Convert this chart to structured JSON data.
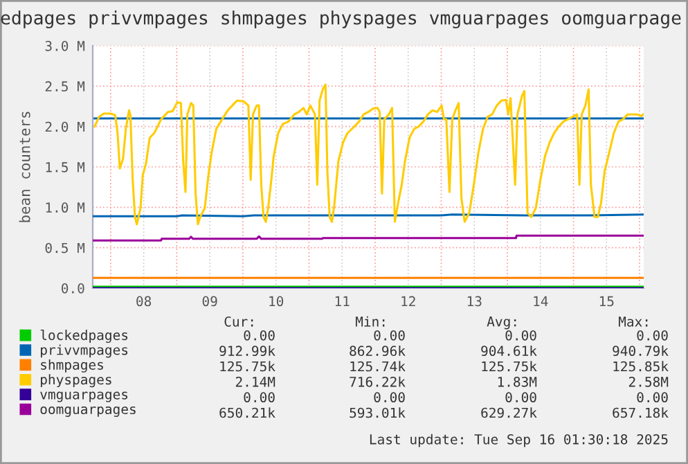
{
  "chart_data": {
    "type": "line",
    "title": "edpages privvmpages shmpages physpages vmguarpages oomguarpage",
    "ylabel": "bean counters",
    "xlim": [
      "2025-09-07T17:30",
      "2025-09-16T01:30"
    ],
    "xticks": [
      {
        "value": "2025-09-08T00:00",
        "label": null
      },
      {
        "value": "2025-09-08T12:00",
        "label": "08"
      },
      {
        "value": "2025-09-09T00:00",
        "label": null
      },
      {
        "value": "2025-09-09T12:00",
        "label": "09"
      },
      {
        "value": "2025-09-10T00:00",
        "label": null
      },
      {
        "value": "2025-09-10T12:00",
        "label": "10"
      },
      {
        "value": "2025-09-11T00:00",
        "label": null
      },
      {
        "value": "2025-09-11T12:00",
        "label": "11"
      },
      {
        "value": "2025-09-12T00:00",
        "label": null
      },
      {
        "value": "2025-09-12T12:00",
        "label": "12"
      },
      {
        "value": "2025-09-13T00:00",
        "label": null
      },
      {
        "value": "2025-09-13T12:00",
        "label": "13"
      },
      {
        "value": "2025-09-14T00:00",
        "label": null
      },
      {
        "value": "2025-09-14T12:00",
        "label": "14"
      },
      {
        "value": "2025-09-15T00:00",
        "label": null
      },
      {
        "value": "2025-09-15T12:00",
        "label": "15"
      },
      {
        "value": "2025-09-16T00:00",
        "label": null
      }
    ],
    "ylim": [
      0,
      3000000
    ],
    "yticks": [
      {
        "value": 0,
        "label": "0.0"
      },
      {
        "value": 500000,
        "label": "0.5 M"
      },
      {
        "value": 1000000,
        "label": "1.0 M"
      },
      {
        "value": 1500000,
        "label": "1.5 M"
      },
      {
        "value": 2000000,
        "label": "2.0 M"
      },
      {
        "value": 2500000,
        "label": "2.5 M"
      },
      {
        "value": 3000000,
        "label": "3.0 M"
      }
    ],
    "grid": true,
    "legend": "bottom",
    "line_style": "solid",
    "marker": "none",
    "ref_lines": [
      {
        "axis": "y",
        "value": 2100000,
        "color": "#0066b3"
      }
    ],
    "series": [
      {
        "name": "lockedpages",
        "color": "#00cc00",
        "x": [
          "2025-09-07T17:30",
          "2025-09-16T01:30"
        ],
        "values": [
          0,
          0
        ]
      },
      {
        "name": "privvmpages",
        "color": "#0066b3",
        "x": [
          "2025-09-07T17:30",
          "2025-09-08T20:00",
          "2025-09-09T00:00",
          "2025-09-09T02:00",
          "2025-09-10T00:00",
          "2025-09-10T04:00",
          "2025-09-10T06:00",
          "2025-09-11T00:00",
          "2025-09-11T04:00",
          "2025-09-12T00:00",
          "2025-09-12T02:00",
          "2025-09-13T00:00",
          "2025-09-13T04:00",
          "2025-09-14T06:00",
          "2025-09-15T06:00",
          "2025-09-16T01:30"
        ],
        "values": [
          890000,
          890000,
          890000,
          900000,
          890000,
          900000,
          900000,
          900000,
          900000,
          900000,
          900000,
          900000,
          910000,
          900000,
          900000,
          910000
        ]
      },
      {
        "name": "shmpages",
        "color": "#ff8000",
        "x": [
          "2025-09-07T17:30",
          "2025-09-16T01:30"
        ],
        "values": [
          126000,
          126000
        ]
      },
      {
        "name": "physpages",
        "color": "#ffcc00",
        "x": [
          "2025-09-07T18:10",
          "2025-09-07T19:50",
          "2025-09-07T21:30",
          "2025-09-08T00:00",
          "2025-09-08T01:40",
          "2025-09-08T02:30",
          "2025-09-08T03:20",
          "2025-09-08T04:30",
          "2025-09-08T05:30",
          "2025-09-08T06:40",
          "2025-09-08T07:10",
          "2025-09-08T08:00",
          "2025-09-08T08:50",
          "2025-09-08T09:30",
          "2025-09-08T10:50",
          "2025-09-08T11:40",
          "2025-09-08T12:50",
          "2025-09-08T14:10",
          "2025-09-08T15:50",
          "2025-09-08T18:20",
          "2025-09-08T20:50",
          "2025-09-08T22:30",
          "2025-09-09T00:10",
          "2025-09-09T01:30",
          "2025-09-09T02:20",
          "2025-09-09T03:10",
          "2025-09-09T03:50",
          "2025-09-09T05:10",
          "2025-09-09T06:00",
          "2025-09-09T06:50",
          "2025-09-09T07:40",
          "2025-09-09T08:30",
          "2025-09-09T10:10",
          "2025-09-09T11:30",
          "2025-09-09T12:40",
          "2025-09-09T14:20",
          "2025-09-09T16:30",
          "2025-09-09T18:30",
          "2025-09-09T20:10",
          "2025-09-09T21:50",
          "2025-09-10T00:20",
          "2025-09-10T02:00",
          "2025-09-10T02:50",
          "2025-09-10T03:40",
          "2025-09-10T05:00",
          "2025-09-10T05:50",
          "2025-09-10T06:40",
          "2025-09-10T07:30",
          "2025-09-10T08:20",
          "2025-09-10T09:10",
          "2025-09-10T10:20",
          "2025-09-10T11:10",
          "2025-09-10T12:50",
          "2025-09-10T14:30",
          "2025-09-10T16:30",
          "2025-09-10T18:40",
          "2025-09-10T20:20",
          "2025-09-10T22:00",
          "2025-09-10T23:10",
          "2025-09-11T00:30",
          "2025-09-11T02:10",
          "2025-09-11T03:00",
          "2025-09-11T03:50",
          "2025-09-11T05:00",
          "2025-09-11T06:00",
          "2025-09-11T06:40",
          "2025-09-11T07:30",
          "2025-09-11T08:20",
          "2025-09-11T09:10",
          "2025-09-11T10:40",
          "2025-09-11T12:20",
          "2025-09-11T14:00",
          "2025-09-11T16:30",
          "2025-09-11T18:10",
          "2025-09-11T19:50",
          "2025-09-11T21:30",
          "2025-09-11T23:10",
          "2025-09-12T00:50",
          "2025-09-12T01:40",
          "2025-09-12T02:30",
          "2025-09-12T03:20",
          "2025-09-12T05:00",
          "2025-09-12T06:10",
          "2025-09-12T07:10",
          "2025-09-12T08:20",
          "2025-09-12T09:40",
          "2025-09-12T10:50",
          "2025-09-12T12:30",
          "2025-09-12T14:10",
          "2025-09-12T15:50",
          "2025-09-12T17:30",
          "2025-09-12T19:10",
          "2025-09-12T20:50",
          "2025-09-12T22:30",
          "2025-09-13T00:10",
          "2025-09-13T01:00",
          "2025-09-13T01:50",
          "2025-09-13T03:00",
          "2025-09-13T04:00",
          "2025-09-13T05:10",
          "2025-09-13T06:20",
          "2025-09-13T07:20",
          "2025-09-13T08:30",
          "2025-09-13T10:10",
          "2025-09-13T11:50",
          "2025-09-13T13:30",
          "2025-09-13T15:10",
          "2025-09-13T16:50",
          "2025-09-13T18:30",
          "2025-09-13T20:10",
          "2025-09-13T21:50",
          "2025-09-13T23:30",
          "2025-09-14T00:20",
          "2025-09-14T01:10",
          "2025-09-14T02:50",
          "2025-09-14T03:40",
          "2025-09-14T05:20",
          "2025-09-14T06:10",
          "2025-09-14T07:20",
          "2025-09-14T08:40",
          "2025-09-14T10:20",
          "2025-09-14T12:00",
          "2025-09-14T13:40",
          "2025-09-14T15:20",
          "2025-09-14T17:00",
          "2025-09-14T18:40",
          "2025-09-14T20:20",
          "2025-09-14T22:00",
          "2025-09-14T23:40",
          "2025-09-15T01:20",
          "2025-09-15T02:10",
          "2025-09-15T03:00",
          "2025-09-15T04:20",
          "2025-09-15T05:30",
          "2025-09-15T06:20",
          "2025-09-15T07:40",
          "2025-09-15T08:50",
          "2025-09-15T10:00",
          "2025-09-15T11:20",
          "2025-09-15T13:00",
          "2025-09-15T14:40",
          "2025-09-15T16:20",
          "2025-09-15T18:00",
          "2025-09-15T19:40",
          "2025-09-15T21:20",
          "2025-09-15T23:00",
          "2025-09-16T00:40",
          "2025-09-16T01:20"
        ],
        "values": [
          2000000,
          2120000,
          2160000,
          2160000,
          2140000,
          1920000,
          1480000,
          1600000,
          1970000,
          2200000,
          2140000,
          1340000,
          880000,
          790000,
          990000,
          1400000,
          1540000,
          1860000,
          1920000,
          2090000,
          2180000,
          2190000,
          2300000,
          2290000,
          1570000,
          1190000,
          2150000,
          2290000,
          2260000,
          1170000,
          790000,
          880000,
          990000,
          1400000,
          1680000,
          1970000,
          2090000,
          2200000,
          2260000,
          2320000,
          2310000,
          2260000,
          1340000,
          2150000,
          2260000,
          2260000,
          1280000,
          880000,
          820000,
          990000,
          1340000,
          1630000,
          1920000,
          2030000,
          2060000,
          2150000,
          2180000,
          2230000,
          2150000,
          2260000,
          2150000,
          1280000,
          2320000,
          2460000,
          2520000,
          1450000,
          880000,
          820000,
          1020000,
          1570000,
          1800000,
          1920000,
          2000000,
          2060000,
          2150000,
          2180000,
          2220000,
          2230000,
          2180000,
          1170000,
          2090000,
          2150000,
          2230000,
          820000,
          1050000,
          1280000,
          1570000,
          1860000,
          1970000,
          2000000,
          2060000,
          2150000,
          2200000,
          2180000,
          2260000,
          2090000,
          2090000,
          1190000,
          2090000,
          2200000,
          2290000,
          1110000,
          820000,
          930000,
          1280000,
          1680000,
          1970000,
          2120000,
          2150000,
          2260000,
          2320000,
          2330000,
          2150000,
          2350000,
          1280000,
          2150000,
          2380000,
          2440000,
          930000,
          880000,
          990000,
          1340000,
          1630000,
          1800000,
          1920000,
          2000000,
          2060000,
          2090000,
          2120000,
          2150000,
          1280000,
          2150000,
          2260000,
          2460000,
          1280000,
          880000,
          880000,
          1050000,
          1450000,
          1680000,
          1920000,
          2060000,
          2090000,
          2150000,
          2150000,
          2150000,
          2130000,
          2150000
        ]
      },
      {
        "name": "vmguarpages",
        "color": "#330099",
        "x": [
          "2025-09-07T17:30",
          "2025-09-16T01:30"
        ],
        "values": [
          0,
          0
        ]
      },
      {
        "name": "oomguarpages",
        "color": "#990099",
        "x": [
          "2025-09-07T17:30",
          "2025-09-08T18:20",
          "2025-09-08T18:30",
          "2025-09-09T04:30",
          "2025-09-09T05:10",
          "2025-09-09T05:50",
          "2025-09-10T05:00",
          "2025-09-10T05:50",
          "2025-09-10T06:40",
          "2025-09-11T04:50",
          "2025-09-11T05:00",
          "2025-09-14T03:10",
          "2025-09-14T03:20",
          "2025-09-16T01:30"
        ],
        "values": [
          590000,
          590000,
          610000,
          610000,
          635000,
          610000,
          610000,
          640000,
          610000,
          610000,
          620000,
          620000,
          650000,
          650000
        ]
      }
    ],
    "annotations": [
      "Cur:",
      "Min:",
      "Avg:",
      "Max:",
      "0.00",
      "0.00",
      "0.00",
      "0.00",
      "912.99k",
      "862.96k",
      "904.61k",
      "940.79k",
      "125.75k",
      "125.74k",
      "125.75k",
      "125.85k",
      "2.14M",
      "716.22k",
      "1.83M",
      "2.58M",
      "0.00",
      "0.00",
      "0.00",
      "0.00",
      "650.21k",
      "593.01k",
      "629.27k",
      "657.18k",
      "Last update: Tue Sep 16 01:30:18 2025"
    ]
  }
}
